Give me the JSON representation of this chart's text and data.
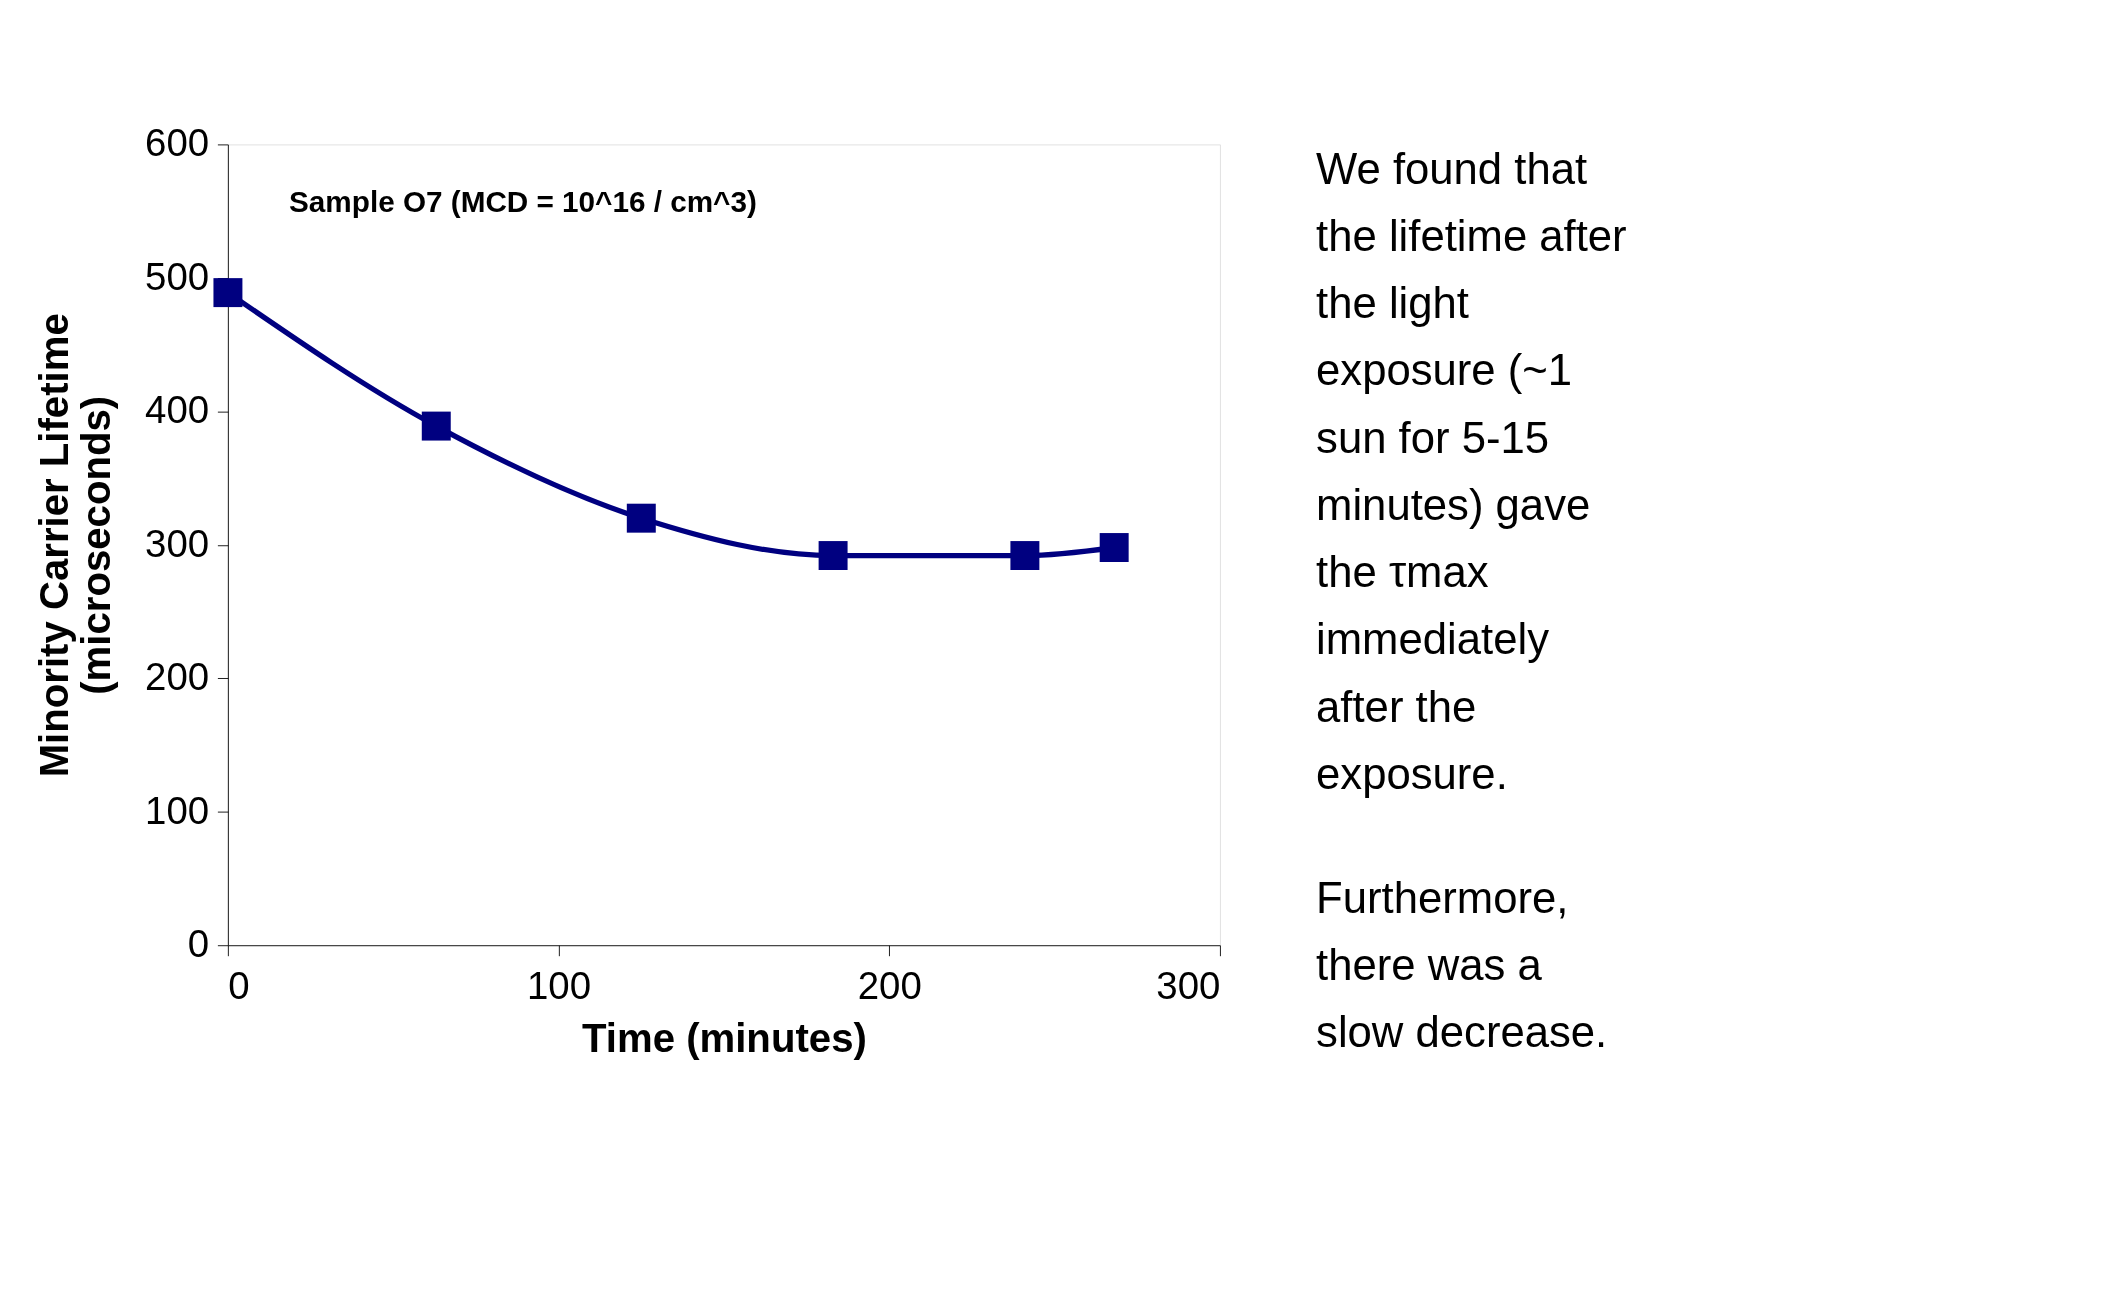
{
  "chart_data": {
    "type": "line",
    "xlabel": "Time (minutes)",
    "ylabel": "Minority Carrier Lifetime\n(microseconds)",
    "x": [
      0,
      63,
      125,
      183,
      241,
      268
    ],
    "series": [
      {
        "color": "#000080",
        "values": [
          489,
          389,
          320,
          292,
          292,
          298
        ]
      }
    ],
    "xlim": [
      0,
      300
    ],
    "xticks": [
      0,
      100,
      200,
      300
    ],
    "ylim": [
      0,
      600
    ],
    "yticks": [
      0,
      100,
      200,
      300,
      400,
      500,
      600
    ],
    "grid": false,
    "marker": "square",
    "line_style": "solid",
    "annotations": [
      "Sample O7 (MCD = 10^16 / cm^3)",
      "We found that\nthe lifetime after\nthe light\nexposure (~1\nsun for 5-15\nminutes) gave\nthe τmax\nimmediately\nafter the\nexposure.",
      "Furthermore,\nthere was a\nslow decrease."
    ]
  }
}
